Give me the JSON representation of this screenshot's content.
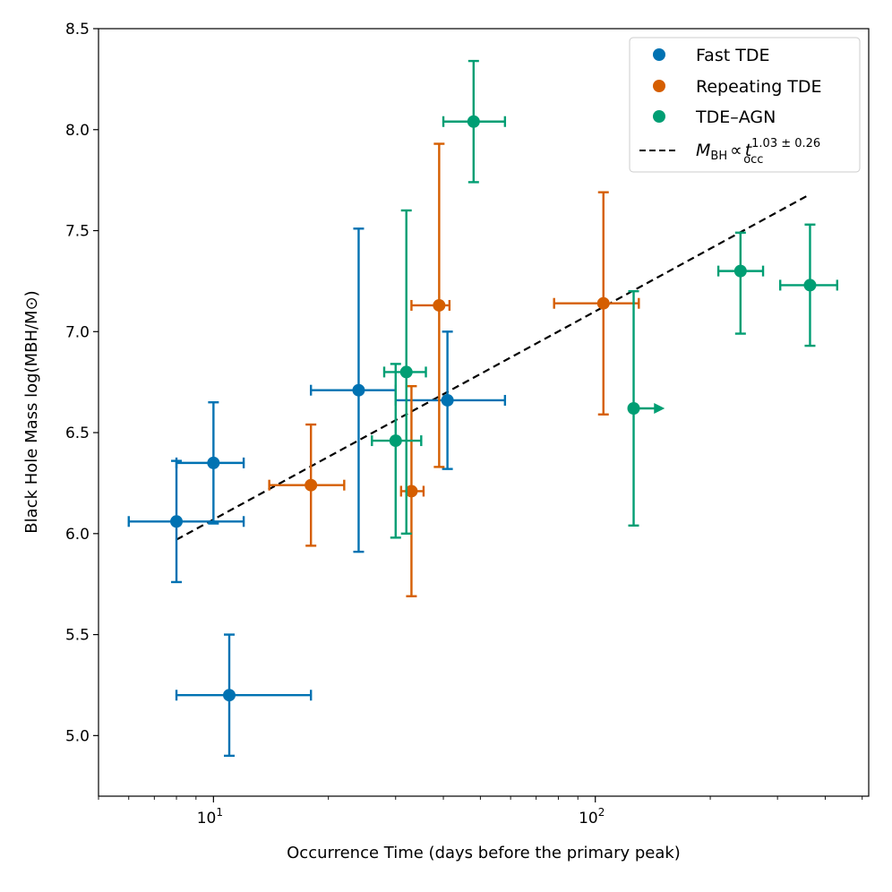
{
  "chart_data": {
    "type": "scatter",
    "xscale": "log",
    "xlabel": "Occurrence Time (days before the primary peak)",
    "ylabel": "Black Hole Mass log(MBH/M⊙)",
    "xlim": [
      5,
      520
    ],
    "ylim": [
      4.7,
      8.5
    ],
    "yticks": [
      5.0,
      5.5,
      6.0,
      6.5,
      7.0,
      7.5,
      8.0,
      8.5
    ],
    "ytick_labels": [
      "5.0",
      "5.5",
      "6.0",
      "6.5",
      "7.0",
      "7.5",
      "8.0",
      "8.5"
    ],
    "xticks_major": [
      10,
      100
    ],
    "xtick_labels": [
      {
        "base": "10",
        "exp": "1"
      },
      {
        "base": "10",
        "exp": "2"
      }
    ],
    "colors": {
      "fast": "#0072b2",
      "repeating": "#d55e00",
      "agn": "#009e73",
      "fit": "#000000"
    },
    "series": [
      {
        "name": "Fast TDE",
        "color": "#0072b2",
        "points": [
          {
            "x": 8,
            "y": 6.06,
            "xerr": [
              6,
              12
            ],
            "yerr": [
              5.76,
              6.36
            ]
          },
          {
            "x": 10,
            "y": 6.35,
            "xerr": [
              8,
              12
            ],
            "yerr": [
              6.05,
              6.65
            ]
          },
          {
            "x": 11,
            "y": 5.2,
            "xerr": [
              8,
              18
            ],
            "yerr": [
              4.9,
              5.5
            ]
          },
          {
            "x": 24,
            "y": 6.71,
            "xerr": [
              18,
              30
            ],
            "yerr": [
              5.91,
              7.51
            ]
          },
          {
            "x": 41,
            "y": 6.66,
            "xerr": [
              30,
              58
            ],
            "yerr": [
              6.32,
              7.0
            ]
          }
        ]
      },
      {
        "name": "Repeating TDE",
        "color": "#d55e00",
        "points": [
          {
            "x": 18,
            "y": 6.24,
            "xerr": [
              14,
              22
            ],
            "yerr": [
              5.94,
              6.54
            ]
          },
          {
            "x": 33,
            "y": 6.21,
            "xerr": [
              31,
              35.5
            ],
            "yerr": [
              5.69,
              6.73
            ]
          },
          {
            "x": 39,
            "y": 7.13,
            "xerr": [
              33,
              41.5
            ],
            "yerr": [
              6.33,
              7.93
            ]
          },
          {
            "x": 105,
            "y": 7.14,
            "xerr": [
              78,
              130
            ],
            "yerr": [
              6.59,
              7.69
            ]
          }
        ]
      },
      {
        "name": "TDE–AGN",
        "color": "#009e73",
        "points": [
          {
            "x": 30,
            "y": 6.46,
            "xerr": [
              26,
              35
            ],
            "yerr": [
              5.98,
              6.84
            ]
          },
          {
            "x": 32,
            "y": 6.8,
            "xerr": [
              28,
              36
            ],
            "yerr": [
              6.0,
              7.6
            ]
          },
          {
            "x": 48,
            "y": 8.04,
            "xerr": [
              40,
              58
            ],
            "yerr": [
              7.74,
              8.34
            ]
          },
          {
            "x": 126,
            "y": 6.62,
            "xerr": null,
            "yerr": [
              6.04,
              7.2
            ],
            "lower_limit": true,
            "arrow_to": 152
          },
          {
            "x": 240,
            "y": 7.3,
            "xerr": [
              210,
              275
            ],
            "yerr": [
              6.99,
              7.49
            ]
          },
          {
            "x": 365,
            "y": 7.23,
            "xerr": [
              305,
              430
            ],
            "yerr": [
              6.93,
              7.53
            ]
          }
        ]
      }
    ],
    "fit": {
      "label": "M_BH ∝ t_occ^(1.03 ± 0.26)",
      "x": [
        8,
        365
      ],
      "y": [
        5.97,
        7.68
      ],
      "style": "dashed"
    },
    "legend": {
      "placement": "top-right",
      "entries": [
        {
          "label": "Fast TDE",
          "type": "marker",
          "color": "#0072b2"
        },
        {
          "label": "Repeating TDE",
          "type": "marker",
          "color": "#d55e00"
        },
        {
          "label": "TDE–AGN",
          "type": "marker",
          "color": "#009e73"
        },
        {
          "type": "line",
          "color": "#000000",
          "symbol": "M",
          "sub1": "BH",
          "prop": "∝",
          "t": "t",
          "sup": "1.03 ± 0.26",
          "sub2": "occ"
        }
      ]
    }
  }
}
